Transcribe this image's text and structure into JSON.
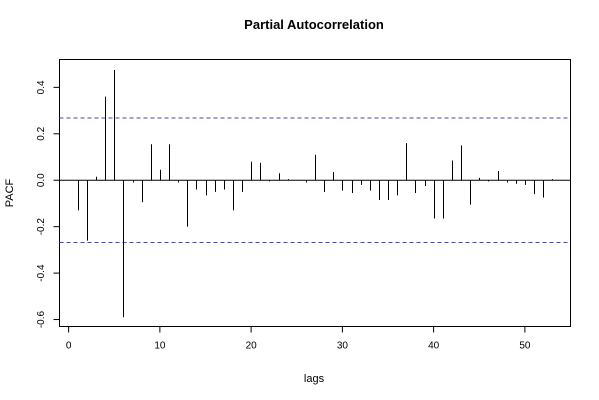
{
  "chart_data": {
    "type": "bar",
    "title": "Partial Autocorrelation",
    "xlabel": "lags",
    "ylabel": "PACF",
    "xlim": [
      -1,
      55
    ],
    "ylim": [
      -0.63,
      0.52
    ],
    "x_ticks": [
      0,
      10,
      20,
      30,
      40,
      50
    ],
    "y_ticks": [
      -0.6,
      -0.4,
      -0.2,
      0.0,
      0.2,
      0.4
    ],
    "x_tick_labels": [
      "0",
      "10",
      "20",
      "30",
      "40",
      "50"
    ],
    "y_tick_labels": [
      "-0.6",
      "-0.4",
      "-0.2",
      "0.0",
      "0.2",
      "0.4"
    ],
    "confidence_bounds": [
      0.268,
      -0.268
    ],
    "grid": false,
    "colors": {
      "bars": "#000000",
      "bounds": "#4a4aa8",
      "frame": "#000000"
    },
    "lags": [
      1,
      2,
      3,
      4,
      5,
      6,
      7,
      8,
      9,
      10,
      11,
      12,
      13,
      14,
      15,
      16,
      17,
      18,
      19,
      20,
      21,
      22,
      23,
      24,
      25,
      26,
      27,
      28,
      29,
      30,
      31,
      32,
      33,
      34,
      35,
      36,
      37,
      38,
      39,
      40,
      41,
      42,
      43,
      44,
      45,
      46,
      47,
      48,
      49,
      50,
      51,
      52,
      53
    ],
    "values": [
      -0.13,
      -0.26,
      0.015,
      0.36,
      0.475,
      -0.59,
      -0.01,
      -0.095,
      0.155,
      0.045,
      0.155,
      -0.01,
      -0.2,
      -0.04,
      -0.065,
      -0.05,
      -0.04,
      -0.13,
      -0.05,
      0.08,
      0.075,
      -0.005,
      0.03,
      0.005,
      0.0,
      -0.01,
      0.11,
      -0.05,
      0.035,
      -0.045,
      -0.055,
      -0.02,
      -0.045,
      -0.085,
      -0.085,
      -0.065,
      0.16,
      -0.055,
      -0.025,
      -0.165,
      -0.165,
      0.085,
      0.15,
      -0.105,
      0.01,
      -0.005,
      0.04,
      -0.01,
      -0.015,
      -0.02,
      -0.06,
      -0.075,
      0.005
    ]
  }
}
